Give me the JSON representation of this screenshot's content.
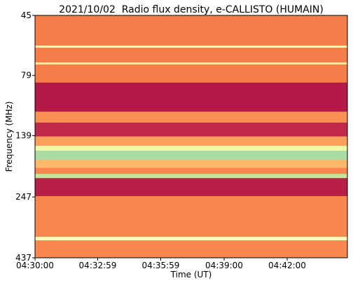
{
  "chart_data": {
    "type": "spectrogram",
    "title": "2021/10/02  Radio flux density, e-CALLISTO (HUMAIN)",
    "x_label": "Time (UT)",
    "y_label": "Frequency (MHz)",
    "xlim": [
      "04:30:00",
      "04:44:52"
    ],
    "xticks": [
      "04:30:00",
      "04:32:59",
      "04:35:59",
      "04:39:00",
      "04:42:00"
    ],
    "ylim": [
      45,
      437
    ],
    "yticks": [
      45,
      79,
      139,
      247,
      437
    ],
    "y_inverted": true,
    "y_log": true,
    "edges": [
      45,
      59.7,
      60.9,
      69.9,
      71.3,
      84.5,
      111,
      123,
      140,
      153,
      160,
      174,
      188,
      199,
      207,
      245,
      359,
      371,
      437
    ],
    "values": [
      0.28,
      0.6,
      0.28,
      0.55,
      0.28,
      0.05,
      0.32,
      0.08,
      0.35,
      0.7,
      0.88,
      0.4,
      0.3,
      0.82,
      0.06,
      0.3,
      0.62,
      0.3
    ],
    "clim": [
      0,
      1
    ],
    "colormap": [
      "#9e0142",
      "#d53e4f",
      "#f46d43",
      "#fdae61",
      "#fee08b",
      "#ffffbf",
      "#e6f598",
      "#abdda4",
      "#66c2a5"
    ]
  }
}
